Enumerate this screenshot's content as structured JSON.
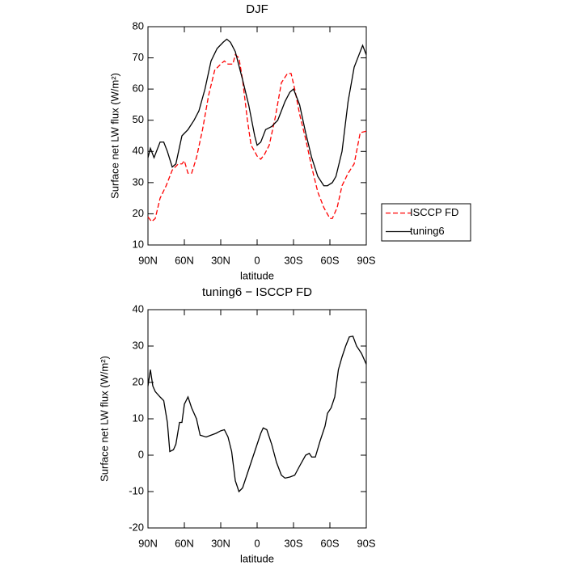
{
  "chart_data": [
    {
      "type": "line",
      "title": "DJF",
      "xlabel": "latitude",
      "ylabel": "Surface net LW flux (W/m²)",
      "xlim": [
        90,
        -90
      ],
      "ylim": [
        10,
        80
      ],
      "xticks": [
        {
          "value": 90,
          "label": "90N"
        },
        {
          "value": 60,
          "label": "60N"
        },
        {
          "value": 30,
          "label": "30N"
        },
        0,
        {
          "value": -30,
          "label": "30S"
        },
        {
          "value": -60,
          "label": "60S"
        },
        {
          "value": -90,
          "label": "90S"
        }
      ],
      "yticks": [
        10,
        20,
        30,
        40,
        50,
        60,
        70,
        80
      ],
      "legend": "right",
      "series": [
        {
          "name": "ISCCP FD",
          "color": "#ff0000",
          "linestyle": "dashed",
          "x": [
            90,
            87,
            84,
            80,
            75,
            70,
            65,
            62,
            60,
            57,
            54,
            50,
            45,
            40,
            35,
            30,
            27,
            24,
            20,
            18,
            15,
            12,
            8,
            5,
            2,
            0,
            -3,
            -6,
            -10,
            -15,
            -20,
            -25,
            -28,
            -31,
            -35,
            -40,
            -45,
            -50,
            -55,
            -60,
            -62,
            -66,
            -70,
            -75,
            -80,
            -85,
            -90
          ],
          "values": [
            19,
            17.5,
            18.5,
            25,
            29,
            34,
            36,
            36,
            37,
            33,
            33,
            38,
            47,
            58,
            66,
            68,
            69,
            68,
            68,
            71,
            70,
            63,
            50,
            42,
            40,
            38.5,
            37.5,
            39,
            42,
            51,
            62,
            65,
            65,
            60,
            52,
            44,
            35,
            27,
            22,
            18.5,
            18.5,
            22,
            29,
            33,
            36,
            46,
            46.5
          ]
        },
        {
          "name": "tuning6",
          "color": "#000000",
          "linestyle": "solid",
          "x": [
            90,
            88,
            85,
            80,
            77,
            74,
            70,
            67,
            62,
            57,
            52,
            48,
            43,
            38,
            33,
            28,
            25,
            22,
            18,
            12,
            7,
            2,
            0,
            -3,
            -7,
            -12,
            -17,
            -23,
            -27,
            -30,
            -35,
            -40,
            -45,
            -50,
            -55,
            -58,
            -62,
            -65,
            -70,
            -75,
            -80,
            -83,
            -87,
            -90
          ],
          "values": [
            38,
            41,
            38,
            43,
            43,
            40,
            35,
            36,
            45,
            47,
            50,
            53,
            60,
            69,
            73,
            75,
            76,
            75,
            72,
            63,
            55,
            45,
            42,
            43,
            47,
            48,
            50,
            56,
            59,
            60,
            55,
            46,
            38,
            32,
            29,
            29,
            30,
            32,
            40,
            56,
            67,
            70,
            74,
            71
          ]
        }
      ]
    },
    {
      "type": "line",
      "title": "tuning6 − ISCCP FD",
      "xlabel": "latitude",
      "ylabel": "Surface net LW flux (W/m²)",
      "xlim": [
        90,
        -90
      ],
      "ylim": [
        -20,
        40
      ],
      "xticks": [
        {
          "value": 90,
          "label": "90N"
        },
        {
          "value": 60,
          "label": "60N"
        },
        {
          "value": 30,
          "label": "30N"
        },
        0,
        {
          "value": -30,
          "label": "30S"
        },
        {
          "value": -60,
          "label": "60S"
        },
        {
          "value": -90,
          "label": "90S"
        }
      ],
      "yticks": [
        -20,
        -10,
        0,
        10,
        20,
        30,
        40
      ],
      "color": "#000000",
      "x": [
        90,
        88,
        86,
        84,
        80,
        77,
        74,
        72,
        69,
        67,
        64,
        62,
        60,
        57,
        54,
        50,
        47,
        42,
        38,
        34,
        30,
        27,
        24,
        21,
        18,
        15,
        12,
        8,
        3,
        0,
        -3,
        -5,
        -8,
        -12,
        -16,
        -20,
        -23,
        -27,
        -31,
        -35,
        -40,
        -43,
        -45,
        -48,
        -52,
        -56,
        -58,
        -61,
        -64,
        -67,
        -70,
        -73,
        -76,
        -79,
        -82,
        -86,
        -90
      ],
      "values": [
        19,
        23.5,
        19,
        17.5,
        16,
        15,
        9,
        1,
        1.5,
        3,
        9,
        9,
        14,
        16,
        13,
        10,
        5.5,
        5,
        5.5,
        6,
        6.7,
        7,
        5,
        1,
        -7,
        -10,
        -9,
        -5,
        0,
        3,
        6,
        7.5,
        7,
        3,
        -2,
        -5.5,
        -6.3,
        -6,
        -5.5,
        -3,
        0,
        0.5,
        -0.5,
        -0.5,
        4,
        8,
        11.5,
        13,
        16,
        23.5,
        27,
        30,
        32.5,
        32.7,
        30,
        28,
        25
      ]
    }
  ]
}
